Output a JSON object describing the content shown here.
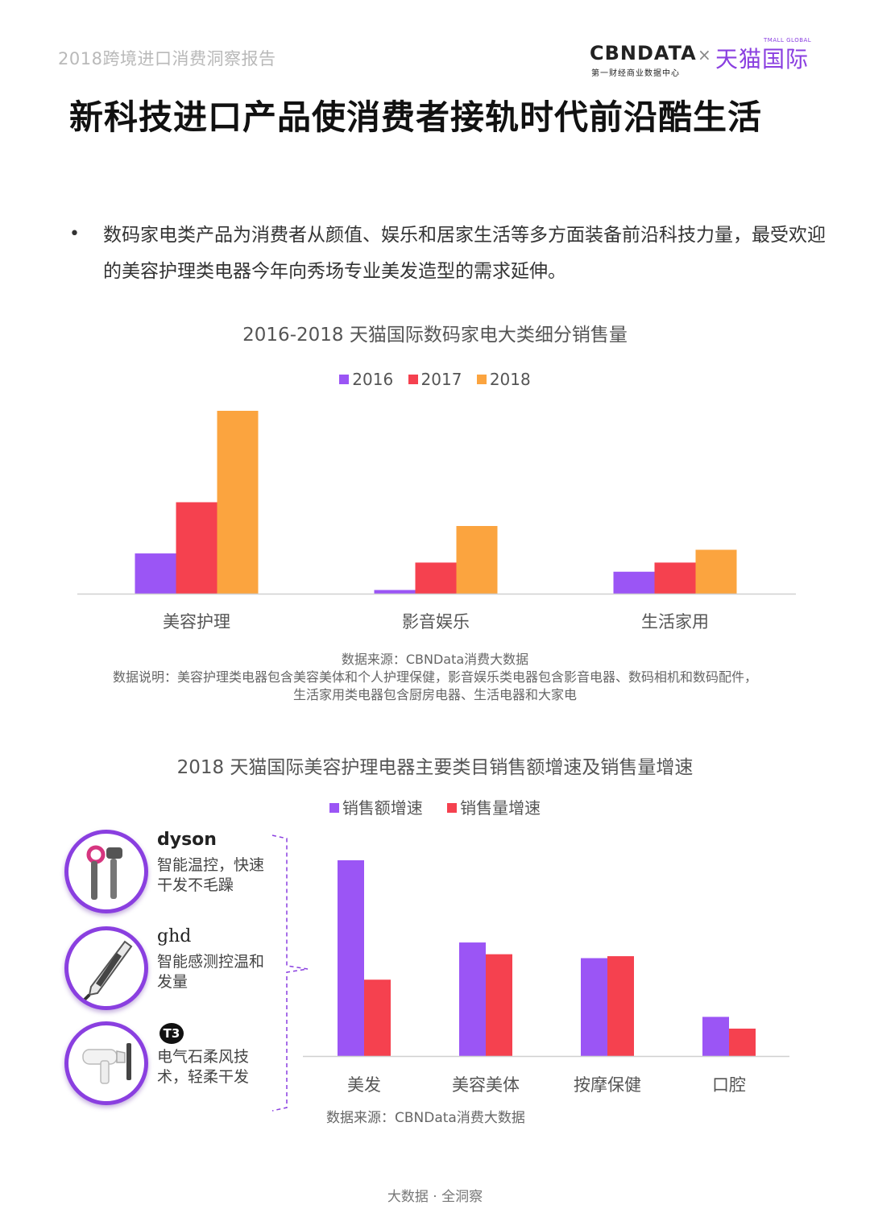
{
  "header": {
    "report_name": "2018跨境进口消费洞察报告",
    "cbn_logo": "CBNDATA",
    "cbn_sub": "第一财经商业数据中心",
    "cross": "×",
    "tmall_logo": "天猫国际",
    "tmall_en": "TMALL GLOBAL"
  },
  "title": "新科技进口产品使消费者接轨时代前沿酷生活",
  "bullet": {
    "dot": "•",
    "text": "数码家电类产品为消费者从颜值、娱乐和居家生活等多方面装备前沿科技力量，最受欢迎的美容护理类电器今年向秀场专业美发造型的需求延伸。"
  },
  "chart_data": [
    {
      "type": "bar",
      "title": "2016-2018 天猫国际数码家电大类细分销售量",
      "categories": [
        "美容护理",
        "影音娱乐",
        "生活家用"
      ],
      "series": [
        {
          "name": "2016",
          "color": "#9b55f5",
          "values": [
            22,
            2,
            12
          ]
        },
        {
          "name": "2017",
          "color": "#f5414f",
          "values": [
            50,
            17,
            17
          ]
        },
        {
          "name": "2018",
          "color": "#fba43f",
          "values": [
            100,
            37,
            24
          ]
        }
      ],
      "ylim": [
        0,
        100
      ],
      "grid": false,
      "legend": "top-center",
      "xlabel": "",
      "ylabel": ""
    },
    {
      "type": "bar",
      "title": "2018 天猫国际美容护理电器主要类目销售额增速及销售量增速",
      "categories": [
        "美发",
        "美容美体",
        "按摩保健",
        "口腔"
      ],
      "series": [
        {
          "name": "销售额增速",
          "color": "#9b55f5",
          "values": [
            100,
            58,
            50,
            20
          ]
        },
        {
          "name": "销售量增速",
          "color": "#f5414f",
          "values": [
            39,
            52,
            51,
            14
          ]
        }
      ],
      "ylim": [
        0,
        100
      ],
      "grid": false,
      "legend": "top-center",
      "xlabel": "",
      "ylabel": ""
    }
  ],
  "chart1_notes": {
    "source": "数据来源：CBNData消费大数据",
    "desc_line1": "数据说明：美容护理类电器包含美容美体和个人护理保健，影音娱乐类电器包含影音电器、数码相机和数码配件，",
    "desc_line2": "生活家用类电器包含厨房电器、生活电器和大家电"
  },
  "chart2_notes": {
    "source": "数据来源：CBNData消费大数据"
  },
  "products": [
    {
      "brand": "dyson",
      "desc": "智能温控，快速干发不毛躁",
      "icon": "hair-dryer-icon"
    },
    {
      "brand": "ghd",
      "desc": "智能感测控温和发量",
      "icon": "hair-straightener-icon"
    },
    {
      "brand": "T3",
      "desc": "电气石柔风技术，轻柔干发",
      "icon": "white-hair-dryer-icon"
    }
  ],
  "colors": {
    "purple": "#9b55f5",
    "red": "#f5414f",
    "orange": "#fba43f",
    "brand_purple": "#8a3fe0"
  },
  "footer": "大数据 · 全洞察"
}
